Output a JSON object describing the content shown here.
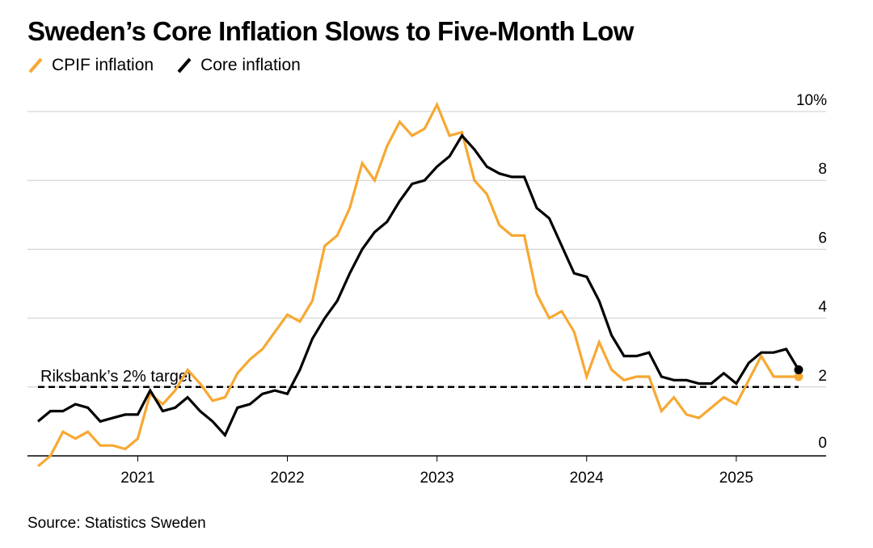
{
  "title": "Sweden’s Core Inflation Slows to Five-Month Low",
  "source": "Source: Statistics Sweden",
  "colors": {
    "cpif": "#F7A833",
    "core": "#000000",
    "grid": "#cccccc",
    "target_line": "#000000"
  },
  "chart_data": {
    "type": "line",
    "title": "Sweden’s Core Inflation Slows to Five-Month Low",
    "xlabel": "",
    "ylabel": "",
    "x_start": "2020-05",
    "x_end": "2025-06",
    "x_ticks": [
      {
        "date": "2021-01",
        "label": "2021"
      },
      {
        "date": "2022-01",
        "label": "2022"
      },
      {
        "date": "2023-01",
        "label": "2023"
      },
      {
        "date": "2024-01",
        "label": "2024"
      },
      {
        "date": "2025-01",
        "label": "2025"
      }
    ],
    "ylim": [
      0,
      10
    ],
    "y_ticks": [
      {
        "value": 10,
        "label": "10%"
      },
      {
        "value": 8,
        "label": "8"
      },
      {
        "value": 6,
        "label": "6"
      },
      {
        "value": 4,
        "label": "4"
      },
      {
        "value": 2,
        "label": "2"
      },
      {
        "value": 0,
        "label": "0"
      }
    ],
    "grid": true,
    "legend_placement": "top-left",
    "x": [
      "2020-05",
      "2020-06",
      "2020-07",
      "2020-08",
      "2020-09",
      "2020-10",
      "2020-11",
      "2020-12",
      "2021-01",
      "2021-02",
      "2021-03",
      "2021-04",
      "2021-05",
      "2021-06",
      "2021-07",
      "2021-08",
      "2021-09",
      "2021-10",
      "2021-11",
      "2021-12",
      "2022-01",
      "2022-02",
      "2022-03",
      "2022-04",
      "2022-05",
      "2022-06",
      "2022-07",
      "2022-08",
      "2022-09",
      "2022-10",
      "2022-11",
      "2022-12",
      "2023-01",
      "2023-02",
      "2023-03",
      "2023-04",
      "2023-05",
      "2023-06",
      "2023-07",
      "2023-08",
      "2023-09",
      "2023-10",
      "2023-11",
      "2023-12",
      "2024-01",
      "2024-02",
      "2024-03",
      "2024-04",
      "2024-05",
      "2024-06",
      "2024-07",
      "2024-08",
      "2024-09",
      "2024-10",
      "2024-11",
      "2024-12",
      "2025-01",
      "2025-02",
      "2025-03",
      "2025-04",
      "2025-05",
      "2025-06"
    ],
    "series": [
      {
        "name": "CPIF inflation",
        "color": "#F7A833",
        "values": [
          -0.3,
          0.0,
          0.7,
          0.5,
          0.7,
          0.3,
          0.3,
          0.2,
          0.5,
          1.8,
          1.5,
          1.9,
          2.5,
          2.1,
          1.6,
          1.7,
          2.4,
          2.8,
          3.1,
          3.6,
          4.1,
          3.9,
          4.5,
          6.1,
          6.4,
          7.2,
          8.5,
          8.0,
          9.0,
          9.7,
          9.3,
          9.5,
          10.2,
          9.3,
          9.4,
          8.0,
          7.6,
          6.7,
          6.4,
          6.4,
          4.7,
          4.0,
          4.2,
          3.6,
          2.3,
          3.3,
          2.5,
          2.2,
          2.3,
          2.3,
          1.3,
          1.7,
          1.2,
          1.1,
          1.4,
          1.7,
          1.5,
          2.2,
          2.9,
          2.3,
          2.3,
          2.3
        ]
      },
      {
        "name": "Core inflation",
        "color": "#000000",
        "values": [
          1.0,
          1.3,
          1.3,
          1.5,
          1.4,
          1.0,
          1.1,
          1.2,
          1.2,
          1.9,
          1.3,
          1.4,
          1.7,
          1.3,
          1.0,
          0.6,
          1.4,
          1.5,
          1.8,
          1.9,
          1.8,
          2.5,
          3.4,
          4.0,
          4.5,
          5.3,
          6.0,
          6.5,
          6.8,
          7.4,
          7.9,
          8.0,
          8.4,
          8.7,
          9.3,
          8.9,
          8.4,
          8.2,
          8.1,
          8.1,
          7.2,
          6.9,
          6.1,
          5.3,
          5.2,
          4.5,
          3.5,
          2.9,
          2.9,
          3.0,
          2.3,
          2.2,
          2.2,
          2.1,
          2.1,
          2.4,
          2.1,
          2.7,
          3.0,
          3.0,
          3.1,
          2.5
        ]
      }
    ],
    "annotations": [
      {
        "text": "Riksbank’s 2% target",
        "y": 2,
        "style": "dashed"
      }
    ]
  }
}
